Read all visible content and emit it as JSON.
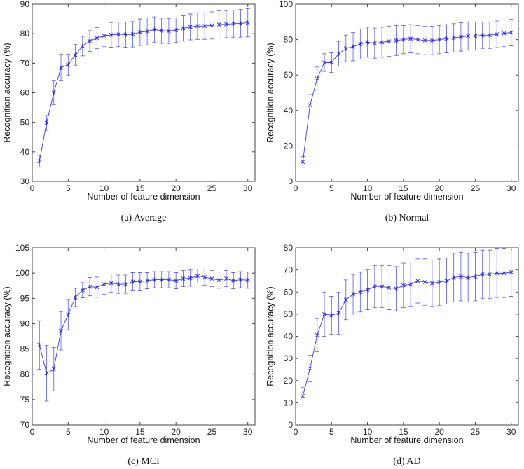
{
  "chart_data": [
    {
      "type": "line",
      "caption": "(a) Average",
      "xlabel": "Number of feature dimension",
      "ylabel": "Recognition accuracy (%)",
      "xlim": [
        0,
        31
      ],
      "ylim": [
        30,
        90
      ],
      "xticks": [
        0,
        5,
        10,
        15,
        20,
        25,
        30
      ],
      "yticks": [
        30,
        40,
        50,
        60,
        70,
        80,
        90
      ],
      "x": [
        1,
        2,
        3,
        4,
        5,
        6,
        7,
        8,
        9,
        10,
        11,
        12,
        13,
        14,
        15,
        16,
        17,
        18,
        19,
        20,
        21,
        22,
        23,
        24,
        25,
        26,
        27,
        28,
        29,
        30
      ],
      "values": [
        36.8,
        49.8,
        60.0,
        68.5,
        69.5,
        72.8,
        75.8,
        77.5,
        78.5,
        79.3,
        79.6,
        79.8,
        79.7,
        79.8,
        80.5,
        80.8,
        81.4,
        81.0,
        80.9,
        81.2,
        81.8,
        82.3,
        82.6,
        82.6,
        82.8,
        83.1,
        83.2,
        83.4,
        83.5,
        83.7
      ],
      "errors": [
        2.0,
        2.5,
        4.0,
        4.5,
        3.5,
        3.5,
        3.3,
        3.5,
        3.6,
        3.7,
        4.2,
        4.2,
        4.3,
        4.3,
        4.5,
        4.6,
        4.3,
        4.3,
        4.2,
        4.2,
        4.3,
        4.4,
        4.5,
        4.5,
        4.6,
        4.6,
        4.6,
        4.6,
        4.7,
        4.8
      ]
    },
    {
      "type": "line",
      "caption": "(b) Normal",
      "xlabel": "Number of feature dimension",
      "ylabel": "Recognition accuracy (%)",
      "xlim": [
        0,
        31
      ],
      "ylim": [
        0,
        100
      ],
      "xticks": [
        0,
        5,
        10,
        15,
        20,
        25,
        30
      ],
      "yticks": [
        0,
        20,
        40,
        60,
        80,
        100
      ],
      "x": [
        1,
        2,
        3,
        4,
        5,
        6,
        7,
        8,
        9,
        10,
        11,
        12,
        13,
        14,
        15,
        16,
        17,
        18,
        19,
        20,
        21,
        22,
        23,
        24,
        25,
        26,
        27,
        28,
        29,
        30
      ],
      "values": [
        11.0,
        43.0,
        58.0,
        67.0,
        67.0,
        72.0,
        75.0,
        76.0,
        77.5,
        78.5,
        78.0,
        78.5,
        79.0,
        79.5,
        80.0,
        80.5,
        80.0,
        79.5,
        79.5,
        80.0,
        80.5,
        81.0,
        81.5,
        82.0,
        82.0,
        82.5,
        82.5,
        83.0,
        83.5,
        84.0
      ],
      "errors": [
        3.0,
        6.0,
        6.5,
        5.0,
        5.5,
        7.0,
        7.5,
        8.0,
        8.5,
        8.5,
        8.5,
        8.5,
        8.5,
        8.5,
        8.0,
        8.0,
        8.0,
        8.0,
        8.0,
        8.0,
        8.0,
        8.0,
        8.0,
        8.0,
        8.0,
        7.5,
        7.5,
        7.5,
        7.5,
        7.5
      ]
    },
    {
      "type": "line",
      "caption": "(c) MCI",
      "xlabel": "Number of feature dimension",
      "ylabel": "Recognition accuracy (%)",
      "xlim": [
        0,
        31
      ],
      "ylim": [
        70,
        105
      ],
      "xticks": [
        0,
        5,
        10,
        15,
        20,
        25,
        30
      ],
      "yticks": [
        70,
        75,
        80,
        85,
        90,
        95,
        100,
        105
      ],
      "x": [
        1,
        2,
        3,
        4,
        5,
        6,
        7,
        8,
        9,
        10,
        11,
        12,
        13,
        14,
        15,
        16,
        17,
        18,
        19,
        20,
        21,
        22,
        23,
        24,
        25,
        26,
        27,
        28,
        29,
        30
      ],
      "values": [
        85.8,
        80.2,
        81.0,
        88.6,
        91.8,
        95.2,
        96.6,
        97.3,
        97.2,
        97.8,
        98.0,
        97.8,
        97.8,
        98.3,
        98.3,
        98.5,
        98.7,
        98.7,
        98.7,
        98.5,
        98.9,
        99.0,
        99.4,
        99.2,
        98.9,
        98.6,
        98.9,
        98.5,
        98.7,
        98.6
      ],
      "errors": [
        4.8,
        5.5,
        4.3,
        3.8,
        3.0,
        1.8,
        1.5,
        1.8,
        2.0,
        2.0,
        1.8,
        1.8,
        1.8,
        1.8,
        1.8,
        1.6,
        1.6,
        1.6,
        1.6,
        1.6,
        1.6,
        1.6,
        1.4,
        1.6,
        1.6,
        1.6,
        1.6,
        1.6,
        1.6,
        1.6
      ]
    },
    {
      "type": "line",
      "caption": "(d) AD",
      "xlabel": "Number of feature dimension",
      "ylabel": "Recognition accuracy (%)",
      "xlim": [
        0,
        31
      ],
      "ylim": [
        0,
        80
      ],
      "xticks": [
        0,
        5,
        10,
        15,
        20,
        25,
        30
      ],
      "yticks": [
        0,
        10,
        20,
        30,
        40,
        50,
        60,
        70,
        80
      ],
      "x": [
        1,
        2,
        3,
        4,
        5,
        6,
        7,
        8,
        9,
        10,
        11,
        12,
        13,
        14,
        15,
        16,
        17,
        18,
        19,
        20,
        21,
        22,
        23,
        24,
        25,
        26,
        27,
        28,
        29,
        30
      ],
      "values": [
        13.0,
        25.5,
        40.5,
        50.0,
        49.5,
        50.5,
        56.5,
        59.0,
        60.0,
        61.0,
        62.5,
        62.5,
        62.0,
        61.5,
        63.0,
        63.5,
        65.0,
        64.5,
        64.0,
        64.5,
        65.0,
        66.5,
        67.0,
        66.5,
        67.0,
        68.0,
        68.0,
        68.5,
        68.5,
        69.0
      ],
      "errors": [
        4.0,
        6.0,
        7.5,
        10.0,
        8.5,
        9.5,
        9.0,
        9.0,
        9.0,
        9.0,
        9.5,
        9.5,
        10.0,
        10.0,
        10.0,
        10.0,
        10.0,
        10.5,
        10.5,
        10.5,
        10.5,
        11.0,
        11.0,
        11.0,
        11.0,
        11.0,
        11.0,
        11.0,
        11.0,
        11.0
      ]
    }
  ]
}
